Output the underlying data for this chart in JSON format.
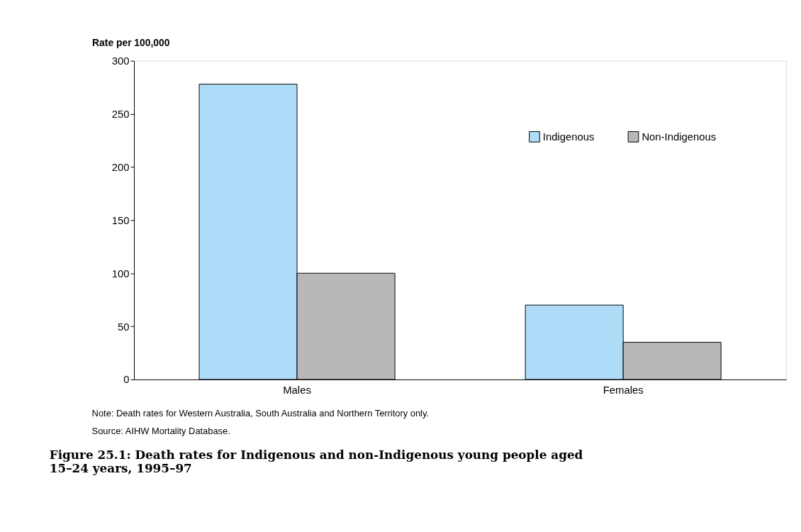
{
  "chart_data": {
    "type": "bar",
    "title": "Figure 25.1: Death rates for Indigenous and non-Indigenous young people aged\n15–24 years, 1995–97",
    "ylabel": "Rate per 100,000",
    "categories": [
      "Males",
      "Females"
    ],
    "series": [
      {
        "name": "Indigenous",
        "color": "#aedcf8",
        "values": [
          278,
          70
        ]
      },
      {
        "name": "Non-Indigenous",
        "color": "#b8b8b8",
        "values": [
          100,
          35
        ]
      }
    ],
    "ylim": [
      0,
      300
    ],
    "yticks": [
      0,
      50,
      100,
      150,
      200,
      250,
      300
    ],
    "grid": false,
    "legend": "top right",
    "annotations": [
      "Note:    Death rates for Western Australia, South Australia and Northern Territory only.",
      "Source: AIHW Mortality Database."
    ]
  }
}
